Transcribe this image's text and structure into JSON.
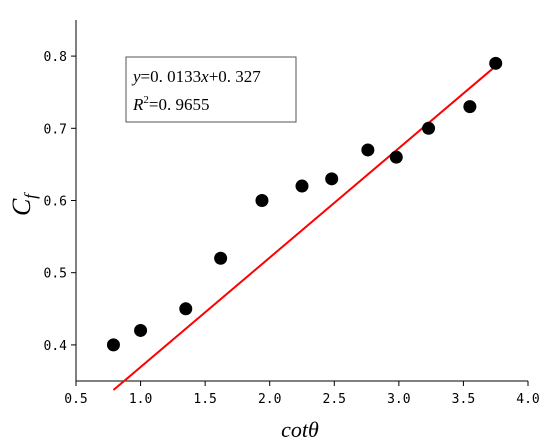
{
  "chart_data": {
    "type": "scatter",
    "xlabel": "cotθ",
    "ylabel": "C",
    "ylabel_sub": "f",
    "xlim": [
      0.5,
      4.0
    ],
    "ylim": [
      0.35,
      0.85
    ],
    "x_ticks": [
      "0.5",
      "1.0",
      "1.5",
      "2.0",
      "2.5",
      "3.0",
      "3.5",
      "4.0"
    ],
    "y_ticks": [
      "0.4",
      "0.5",
      "0.6",
      "0.7",
      "0.8"
    ],
    "points": [
      {
        "x": 0.79,
        "y": 0.4
      },
      {
        "x": 1.0,
        "y": 0.42
      },
      {
        "x": 1.35,
        "y": 0.45
      },
      {
        "x": 1.62,
        "y": 0.52
      },
      {
        "x": 1.94,
        "y": 0.6
      },
      {
        "x": 2.25,
        "y": 0.62
      },
      {
        "x": 2.48,
        "y": 0.63
      },
      {
        "x": 2.76,
        "y": 0.67
      },
      {
        "x": 2.98,
        "y": 0.66
      },
      {
        "x": 3.23,
        "y": 0.7
      },
      {
        "x": 3.55,
        "y": 0.73
      },
      {
        "x": 3.75,
        "y": 0.79
      }
    ],
    "fit_line": {
      "slope": 0.0133,
      "intercept": 0.327,
      "x_range": [
        0.79,
        3.75
      ],
      "color": "#ff0000"
    },
    "point_color": "#000000",
    "annotation": {
      "eq_y": "y",
      "eq_mid": "=0. 0133",
      "eq_x": "x",
      "eq_tail": "+0. 327",
      "r_label": "R",
      "r_sup": "2",
      "r_tail": "=0. 9655"
    }
  }
}
